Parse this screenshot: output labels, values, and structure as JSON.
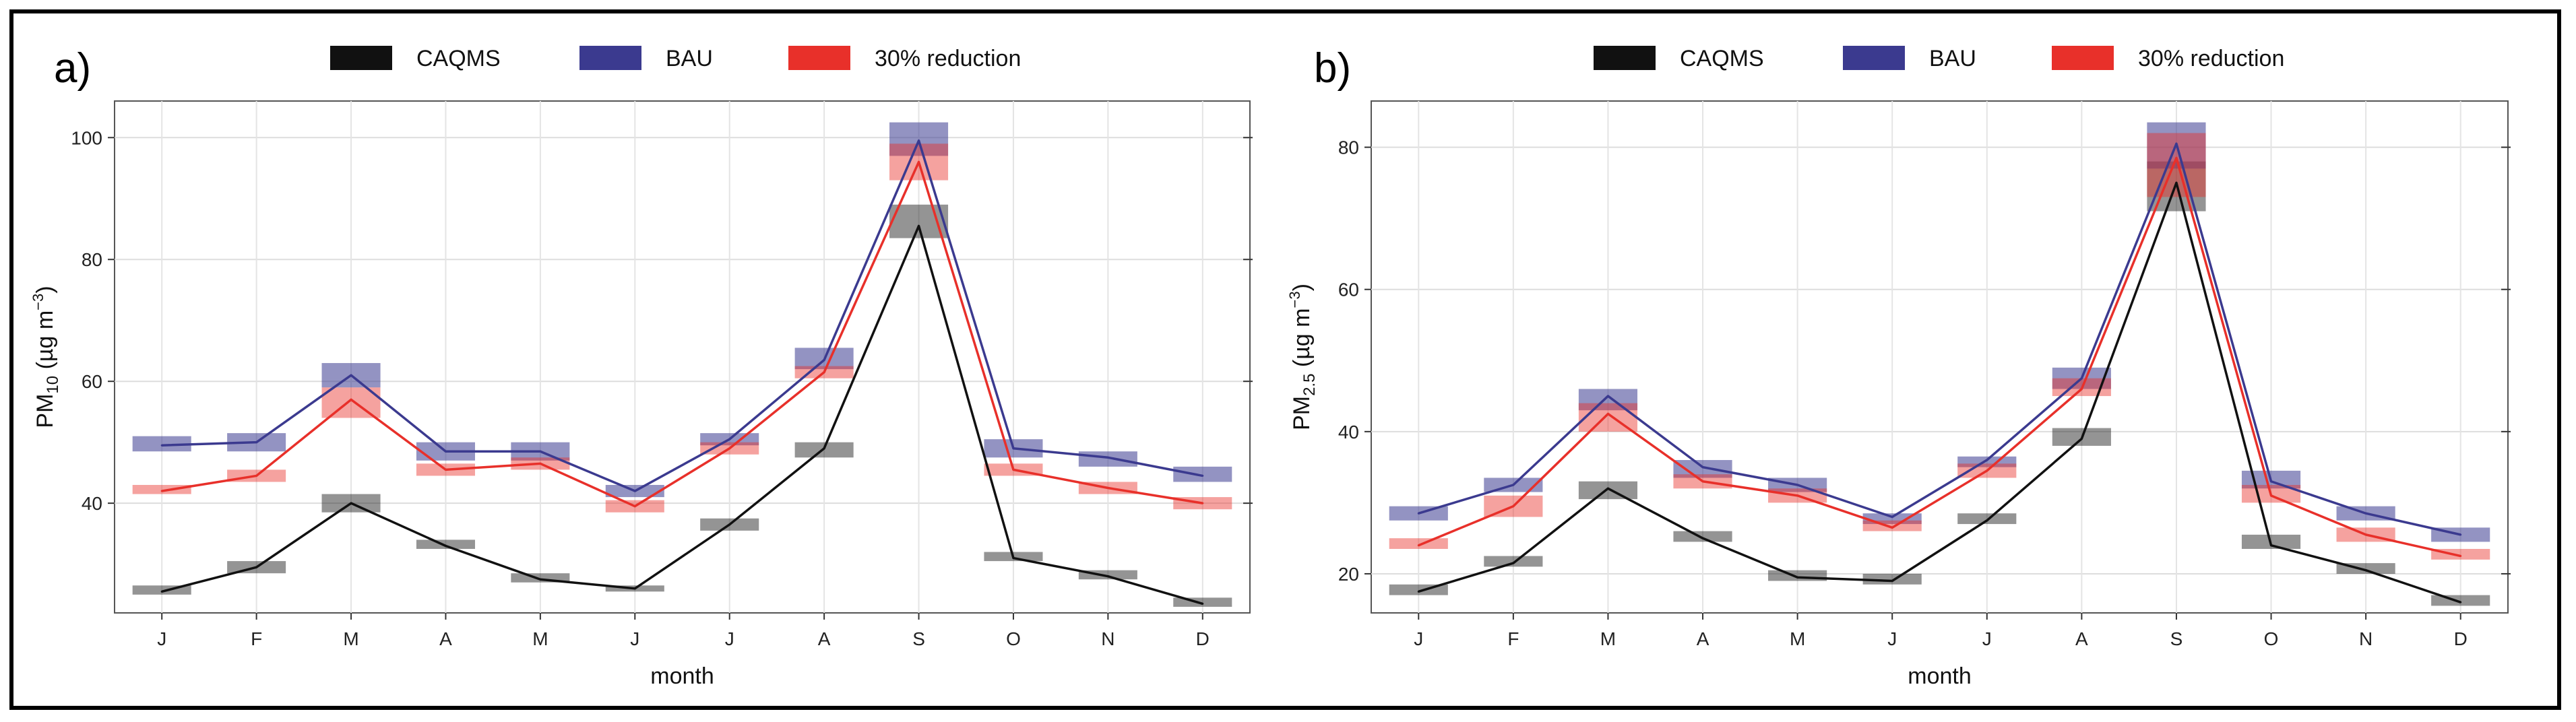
{
  "legend": [
    {
      "name": "CAQMS",
      "color": "#111111"
    },
    {
      "name": "BAU",
      "color": "#3b3a8f"
    },
    {
      "name": "30% reduction",
      "color": "#e8302a"
    }
  ],
  "chart_data": [
    {
      "type": "line",
      "panel_label": "a)",
      "xlabel": "month",
      "ylabel_main": "PM",
      "ylabel_sub": "10",
      "ylabel_unit_open": " (µg m",
      "ylabel_unit_sup": "−3",
      "ylabel_unit_close": ")",
      "categories": [
        "J",
        "F",
        "M",
        "A",
        "M",
        "J",
        "J",
        "A",
        "S",
        "O",
        "N",
        "D"
      ],
      "ylim": [
        22,
        106
      ],
      "yticks": [
        40,
        60,
        80,
        100
      ],
      "grid": true,
      "series": [
        {
          "name": "CAQMS",
          "values": [
            25.5,
            29.5,
            40,
            33,
            27.5,
            26,
            36.5,
            49,
            85.5,
            31,
            28,
            23.5
          ],
          "band_low": [
            25,
            28.5,
            38.5,
            32.5,
            27,
            25.5,
            35.5,
            47.5,
            83.5,
            30.5,
            27.5,
            23
          ],
          "band_high": [
            26.5,
            30.5,
            41.5,
            34,
            28.5,
            26.5,
            37.5,
            50,
            89,
            32,
            29,
            24.5
          ]
        },
        {
          "name": "BAU",
          "values": [
            49.5,
            50,
            61,
            48.5,
            48.5,
            42,
            50.5,
            63.5,
            99.5,
            49,
            47.5,
            44.5
          ],
          "band_low": [
            48.5,
            48.5,
            59,
            47,
            47,
            41,
            49.5,
            62,
            97,
            47.5,
            46,
            43.5
          ],
          "band_high": [
            51,
            51.5,
            63,
            50,
            50,
            43,
            51.5,
            65.5,
            102.5,
            50.5,
            48.5,
            46
          ]
        },
        {
          "name": "30% reduction",
          "values": [
            42,
            44.5,
            57,
            45.5,
            46.5,
            39.5,
            49,
            61.5,
            96,
            45.5,
            42.5,
            40
          ],
          "band_low": [
            41.5,
            43.5,
            54,
            44.5,
            45.5,
            38.5,
            48,
            60.5,
            93,
            44.5,
            41.5,
            39
          ],
          "band_high": [
            43,
            45.5,
            59,
            46.5,
            47.5,
            40.5,
            50,
            62.5,
            99,
            46.5,
            43.5,
            41
          ]
        }
      ]
    },
    {
      "type": "line",
      "panel_label": "b)",
      "xlabel": "month",
      "ylabel_main": "PM",
      "ylabel_sub": "2.5",
      "ylabel_unit_open": " (µg m",
      "ylabel_unit_sup": "−3",
      "ylabel_unit_close": ")",
      "categories": [
        "J",
        "F",
        "M",
        "A",
        "M",
        "J",
        "J",
        "A",
        "S",
        "O",
        "N",
        "D"
      ],
      "ylim": [
        14.5,
        86.5
      ],
      "yticks": [
        20,
        40,
        60,
        80
      ],
      "grid": true,
      "series": [
        {
          "name": "CAQMS",
          "values": [
            17.5,
            21.5,
            32,
            25,
            19.5,
            19,
            27.5,
            39,
            75,
            24,
            20.5,
            16
          ],
          "band_low": [
            17,
            21,
            30.5,
            24.5,
            19,
            18.5,
            27,
            38,
            71,
            23.5,
            20,
            15.5
          ],
          "band_high": [
            18.5,
            22.5,
            33,
            26,
            20.5,
            20,
            28.5,
            40.5,
            78,
            25.5,
            21.5,
            17
          ]
        },
        {
          "name": "BAU",
          "values": [
            28.5,
            32.5,
            45,
            35,
            32.5,
            28,
            36,
            47.5,
            80.5,
            33,
            28.5,
            25.5
          ],
          "band_low": [
            27.5,
            31.5,
            43,
            33.5,
            31.5,
            27,
            35,
            46,
            77,
            32,
            27.5,
            24.5
          ],
          "band_high": [
            29.5,
            33.5,
            46,
            36,
            33.5,
            28.5,
            36.5,
            49,
            83.5,
            34.5,
            29.5,
            26.5
          ]
        },
        {
          "name": "30% reduction",
          "values": [
            24,
            29.5,
            42.5,
            33,
            31,
            26.5,
            34.5,
            46,
            78.5,
            31,
            25.5,
            22.5
          ],
          "band_low": [
            23.5,
            28,
            40,
            32,
            30,
            26,
            33.5,
            45,
            73,
            30,
            24.5,
            22
          ],
          "band_high": [
            25,
            31,
            44,
            34,
            32,
            27.5,
            35.5,
            47.5,
            82,
            32.5,
            26.5,
            23.5
          ]
        }
      ]
    }
  ]
}
